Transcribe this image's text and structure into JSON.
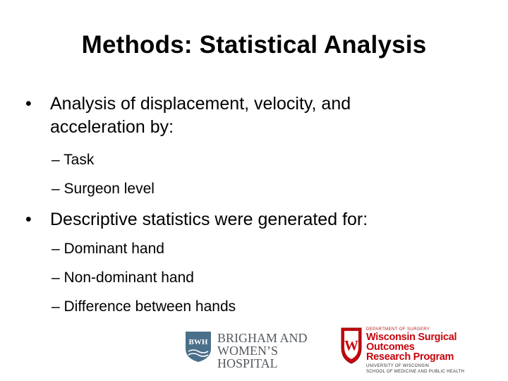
{
  "slide": {
    "title": "Methods: Statistical Analysis",
    "bullet_glyph": "•",
    "bullets": [
      {
        "line1": "Analysis of displacement, velocity, and",
        "line2": "acceleration by:",
        "subitems": [
          "– Task",
          "– Surgeon level"
        ]
      },
      {
        "line1": "Descriptive statistics were generated for:",
        "subitems": [
          "– Dominant hand",
          "– Non-dominant hand",
          "– Difference between hands"
        ]
      }
    ]
  },
  "logos": {
    "bwh": {
      "line1": "BRIGHAM AND",
      "line2": "WOMEN’S HOSPITAL",
      "shield_text": "BWH",
      "color": "#4a6f8a"
    },
    "uw": {
      "dept": "DEPARTMENT OF SURGERY",
      "program_line1": "Wisconsin Surgical Outcomes",
      "program_line2": "Research Program",
      "uni_line1": "UNIVERSITY OF WISCONSIN",
      "uni_line2": "SCHOOL OF MEDICINE AND PUBLIC HEALTH",
      "crest_letter": "W",
      "color": "#c5050c"
    }
  }
}
